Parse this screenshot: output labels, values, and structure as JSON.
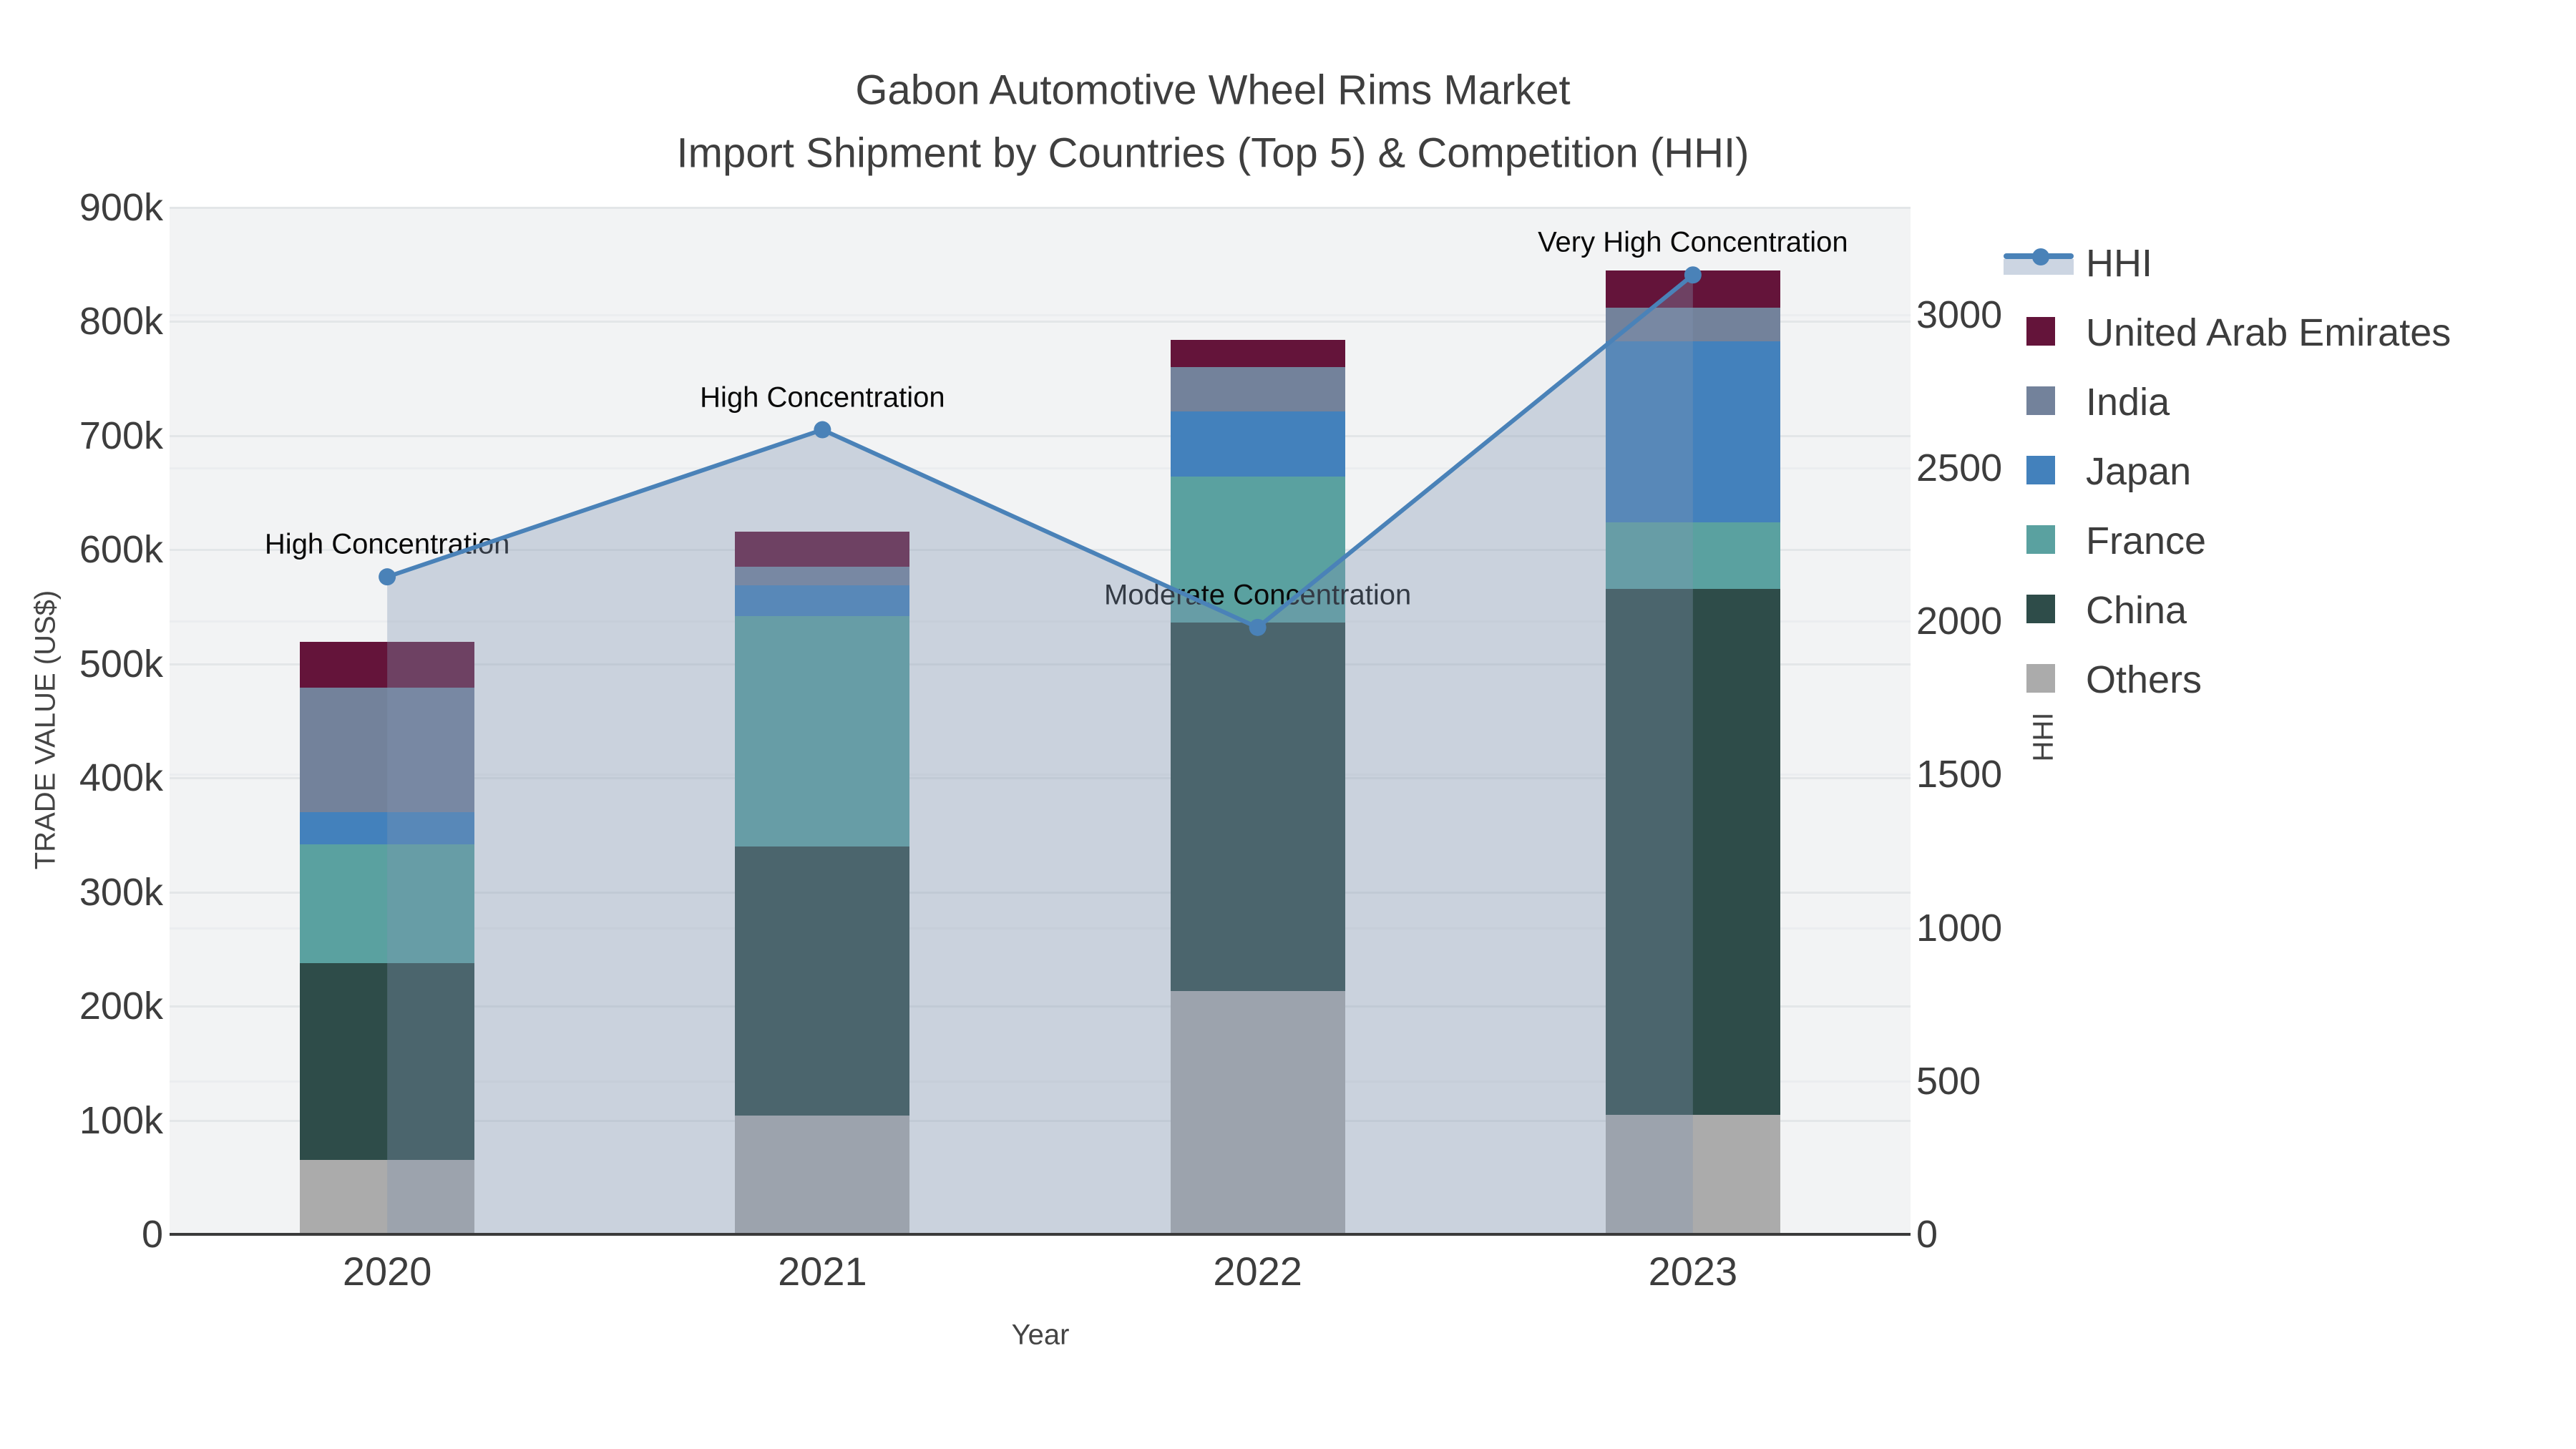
{
  "title": {
    "line1": "Gabon Automotive Wheel Rims Market",
    "line2": "Import Shipment by Countries (Top 5) & Competition (HHI)"
  },
  "axes": {
    "x_title": "Year",
    "y_left_title": "TRADE VALUE (US$)",
    "y_right_title": "HHI",
    "y_left_ticks": [
      {
        "v": 0,
        "label": "0"
      },
      {
        "v": 100000,
        "label": "100k"
      },
      {
        "v": 200000,
        "label": "200k"
      },
      {
        "v": 300000,
        "label": "300k"
      },
      {
        "v": 400000,
        "label": "400k"
      },
      {
        "v": 500000,
        "label": "500k"
      },
      {
        "v": 600000,
        "label": "600k"
      },
      {
        "v": 700000,
        "label": "700k"
      },
      {
        "v": 800000,
        "label": "800k"
      },
      {
        "v": 900000,
        "label": "900k"
      }
    ],
    "y_right_ticks": [
      {
        "v": 0,
        "label": "0"
      },
      {
        "v": 500,
        "label": "500"
      },
      {
        "v": 1000,
        "label": "1000"
      },
      {
        "v": 1500,
        "label": "1500"
      },
      {
        "v": 2000,
        "label": "2000"
      },
      {
        "v": 2500,
        "label": "2500"
      },
      {
        "v": 3000,
        "label": "3000"
      }
    ]
  },
  "chart_data": {
    "type": "bar",
    "subtype": "stacked-bars-with-line-overlay",
    "title": "Gabon Automotive Wheel Rims Market — Import Shipment by Countries (Top 5) & Competition (HHI)",
    "xlabel": "Year",
    "ylabel_left": "TRADE VALUE (US$)",
    "ylabel_right": "HHI",
    "categories": [
      "2020",
      "2021",
      "2022",
      "2023"
    ],
    "ylim_left": [
      0,
      900000
    ],
    "ylim_right": [
      0,
      3350
    ],
    "grid": true,
    "legend_position": "right",
    "series": [
      {
        "name": "Others",
        "color": "#ababab",
        "values": [
          65000,
          104000,
          213000,
          105000
        ]
      },
      {
        "name": "China",
        "color": "#2e4c49",
        "values": [
          173000,
          236000,
          323000,
          461000
        ]
      },
      {
        "name": "France",
        "color": "#5aa1a0",
        "values": [
          104000,
          202000,
          128000,
          58000
        ]
      },
      {
        "name": "Japan",
        "color": "#4381bc",
        "values": [
          28000,
          27000,
          57000,
          159000
        ]
      },
      {
        "name": "India",
        "color": "#73829b",
        "values": [
          109000,
          16000,
          39000,
          29000
        ]
      },
      {
        "name": "United Arab Emirates",
        "color": "#64143a",
        "values": [
          40000,
          31000,
          24000,
          33000
        ]
      }
    ],
    "line_series": {
      "name": "HHI",
      "axis": "right",
      "color": "#4a82b8",
      "area_fill_color": "#8296b2",
      "area_fill_opacity": 0.35,
      "values": [
        2145,
        2625,
        1980,
        3130
      ]
    },
    "annotations": [
      {
        "x_index": 0,
        "text": "High Concentration"
      },
      {
        "x_index": 1,
        "text": "High Concentration"
      },
      {
        "x_index": 2,
        "text": "Moderate Concentration"
      },
      {
        "x_index": 3,
        "text": "Very High Concentration"
      }
    ]
  },
  "legend": {
    "items": [
      {
        "label": "HHI",
        "type": "line",
        "color": "#4a82b8"
      },
      {
        "label": "United Arab Emirates",
        "type": "swatch",
        "color": "#64143a"
      },
      {
        "label": "India",
        "type": "swatch",
        "color": "#73829b"
      },
      {
        "label": "Japan",
        "type": "swatch",
        "color": "#4381bc"
      },
      {
        "label": "France",
        "type": "swatch",
        "color": "#5aa1a0"
      },
      {
        "label": "China",
        "type": "swatch",
        "color": "#2e4c49"
      },
      {
        "label": "Others",
        "type": "swatch",
        "color": "#ababab"
      }
    ]
  }
}
